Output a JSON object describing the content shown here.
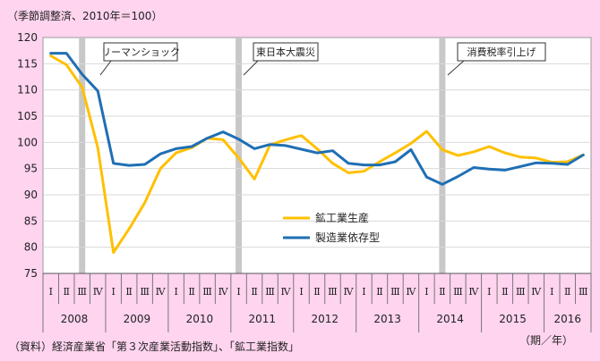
{
  "header_note": "（季節調整済、2010年＝100）",
  "source_note": "（資料）経済産業省「第３次産業活動指数」、「鉱工業指数」",
  "period_note": "（期／年）",
  "callouts": [
    "リーマンショック",
    "東日本大震災",
    "消費税率引上げ"
  ],
  "colors": {
    "mining": "#ffc000",
    "manufacturing": "#1f6fb4",
    "background": "#ffd4ef",
    "shade": "#c8c8c8"
  },
  "chart_data": {
    "type": "line",
    "ylim": [
      75,
      120
    ],
    "yticks": [
      75,
      80,
      85,
      90,
      95,
      100,
      105,
      110,
      115,
      120
    ],
    "quarter_labels": [
      "Ⅰ",
      "Ⅱ",
      "Ⅲ",
      "Ⅳ",
      "Ⅰ",
      "Ⅱ",
      "Ⅲ",
      "Ⅳ",
      "Ⅰ",
      "Ⅱ",
      "Ⅲ",
      "Ⅳ",
      "Ⅰ",
      "Ⅱ",
      "Ⅲ",
      "Ⅳ",
      "Ⅰ",
      "Ⅱ",
      "Ⅲ",
      "Ⅳ",
      "Ⅰ",
      "Ⅱ",
      "Ⅲ",
      "Ⅳ",
      "Ⅰ",
      "Ⅱ",
      "Ⅲ",
      "Ⅳ",
      "Ⅰ",
      "Ⅱ",
      "Ⅲ",
      "Ⅳ",
      "Ⅰ",
      "Ⅱ",
      "Ⅲ"
    ],
    "years": [
      "2008",
      "2009",
      "2010",
      "2011",
      "2012",
      "2013",
      "2014",
      "2015",
      "2016"
    ],
    "shaded_quarters": [
      2,
      12,
      25
    ],
    "series": [
      {
        "name": "鉱工業生産",
        "values": [
          116.5,
          114.8,
          110.5,
          99.0,
          79.0,
          83.5,
          88.5,
          95.0,
          98.0,
          99.0,
          100.8,
          100.5,
          97.0,
          93.0,
          99.5,
          100.5,
          101.3,
          98.8,
          96.0,
          94.2,
          94.5,
          96.3,
          98.0,
          99.8,
          102.1,
          98.6,
          97.5,
          98.2,
          99.2,
          98.0,
          97.2,
          97.0,
          96.2,
          96.3,
          97.6
        ]
      },
      {
        "name": "製造業依存型",
        "values": [
          117.0,
          117.0,
          113.0,
          109.8,
          96.0,
          95.6,
          95.8,
          97.8,
          98.8,
          99.2,
          100.8,
          102.0,
          100.6,
          98.8,
          99.6,
          99.4,
          98.7,
          98.0,
          98.4,
          96.0,
          95.7,
          95.7,
          96.3,
          98.6,
          93.4,
          92.0,
          93.5,
          95.2,
          94.9,
          94.7,
          95.4,
          96.1,
          96.0,
          95.8,
          97.6
        ]
      }
    ]
  }
}
